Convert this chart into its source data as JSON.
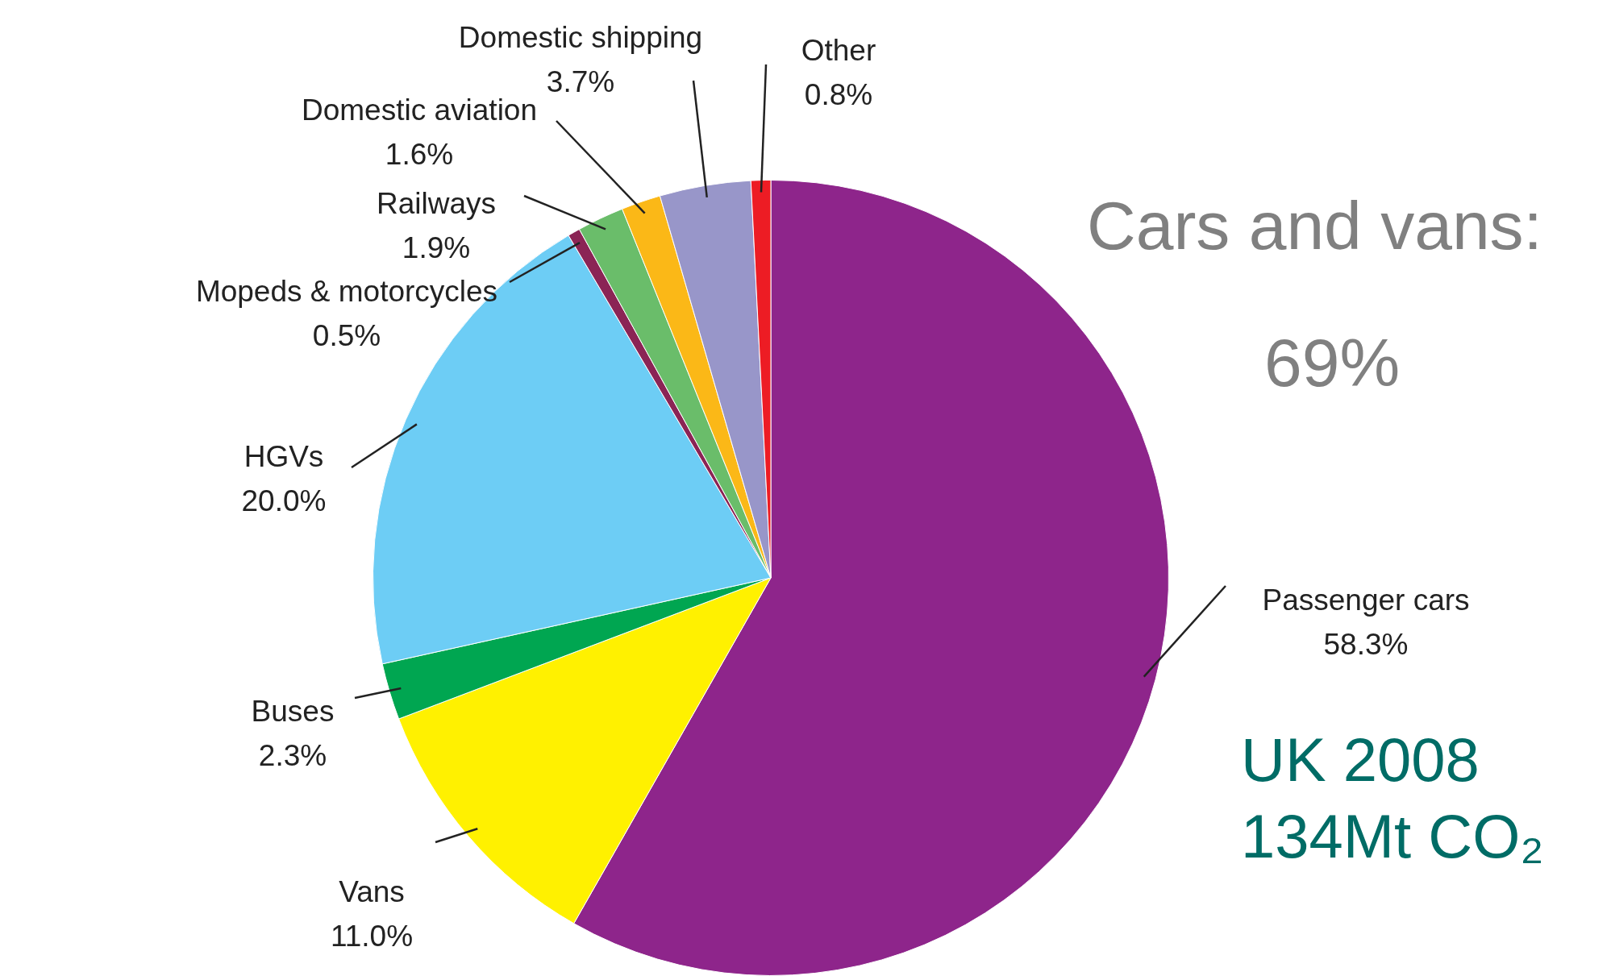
{
  "chart_data": {
    "type": "pie",
    "categories": [
      "Passenger cars",
      "Vans",
      "Buses",
      "HGVs",
      "Mopeds & motorcycles",
      "Railways",
      "Domestic aviation",
      "Domestic shipping",
      "Other"
    ],
    "values": [
      58.3,
      11.0,
      2.3,
      20.0,
      0.5,
      1.9,
      1.6,
      3.7,
      0.8
    ],
    "value_labels": [
      "58.3%",
      "11.0%",
      "2.3%",
      "20.0%",
      "0.5%",
      "1.9%",
      "1.6%",
      "3.7%",
      "0.8%"
    ],
    "colors": [
      "#8e258b",
      "#fff100",
      "#00a651",
      "#6dcdf5",
      "#8b2455",
      "#6abd6a",
      "#fbb817",
      "#9896c9",
      "#ed1c24"
    ],
    "annotations": [
      "Cars and vans:",
      "69%",
      "UK 2008",
      "134Mt CO₂"
    ],
    "legend": false
  }
}
